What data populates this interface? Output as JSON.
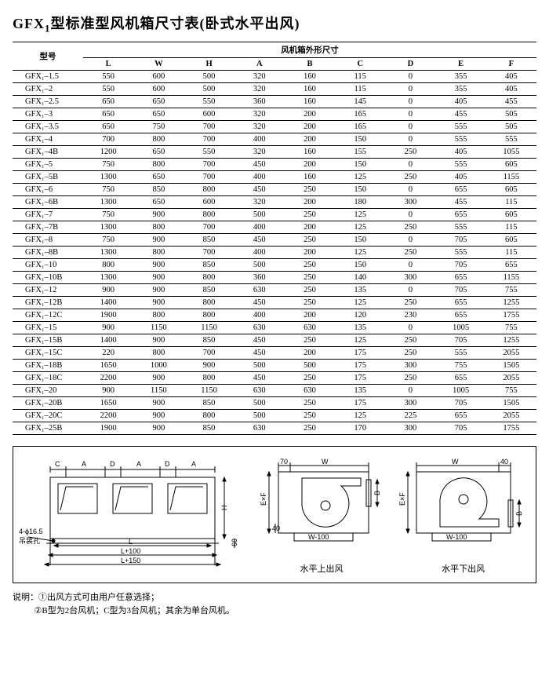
{
  "title_prefix": "GFX",
  "title_sub": "1",
  "title_rest": "型标准型风机箱尺寸表(卧式水平出风)",
  "header": {
    "model": "型号",
    "group": "风机箱外形尺寸",
    "cols": [
      "L",
      "W",
      "H",
      "A",
      "B",
      "C",
      "D",
      "E",
      "F"
    ]
  },
  "rows": [
    {
      "m": "GFX₁–1.5",
      "v": [
        "550",
        "600",
        "500",
        "320",
        "160",
        "115",
        "0",
        "355",
        "405"
      ]
    },
    {
      "m": "GFX₁–2",
      "v": [
        "550",
        "600",
        "500",
        "320",
        "160",
        "115",
        "0",
        "355",
        "405"
      ]
    },
    {
      "m": "GFX₁–2.5",
      "v": [
        "650",
        "650",
        "550",
        "360",
        "160",
        "145",
        "0",
        "405",
        "455"
      ]
    },
    {
      "m": "GFX₁–3",
      "v": [
        "650",
        "650",
        "600",
        "320",
        "200",
        "165",
        "0",
        "455",
        "505"
      ]
    },
    {
      "m": "GFX₁–3.5",
      "v": [
        "650",
        "750",
        "700",
        "320",
        "200",
        "165",
        "0",
        "555",
        "505"
      ]
    },
    {
      "m": "GFX₁–4",
      "v": [
        "700",
        "800",
        "700",
        "400",
        "200",
        "150",
        "0",
        "555",
        "555"
      ]
    },
    {
      "m": "GFX₁–4B",
      "v": [
        "1200",
        "650",
        "550",
        "320",
        "160",
        "155",
        "250",
        "405",
        "1055"
      ]
    },
    {
      "m": "GFX₁–5",
      "v": [
        "750",
        "800",
        "700",
        "450",
        "200",
        "150",
        "0",
        "555",
        "605"
      ]
    },
    {
      "m": "GFX₁–5B",
      "v": [
        "1300",
        "650",
        "700",
        "400",
        "160",
        "125",
        "250",
        "405",
        "1155"
      ]
    },
    {
      "m": "GFX₁–6",
      "v": [
        "750",
        "850",
        "800",
        "450",
        "250",
        "150",
        "0",
        "655",
        "605"
      ]
    },
    {
      "m": "GFX₁–6B",
      "v": [
        "1300",
        "650",
        "600",
        "320",
        "200",
        "180",
        "300",
        "455",
        "115"
      ]
    },
    {
      "m": "GFX₁–7",
      "v": [
        "750",
        "900",
        "800",
        "500",
        "250",
        "125",
        "0",
        "655",
        "605"
      ]
    },
    {
      "m": "GFX₁–7B",
      "v": [
        "1300",
        "800",
        "700",
        "400",
        "200",
        "125",
        "250",
        "555",
        "115"
      ]
    },
    {
      "m": "GFX₁–8",
      "v": [
        "750",
        "900",
        "850",
        "450",
        "250",
        "150",
        "0",
        "705",
        "605"
      ]
    },
    {
      "m": "GFX₁–8B",
      "v": [
        "1300",
        "800",
        "700",
        "400",
        "200",
        "125",
        "250",
        "555",
        "115"
      ]
    },
    {
      "m": "GFX₁–10",
      "v": [
        "800",
        "900",
        "850",
        "500",
        "250",
        "150",
        "0",
        "705",
        "655"
      ]
    },
    {
      "m": "GFX₁–10B",
      "v": [
        "1300",
        "900",
        "800",
        "360",
        "250",
        "140",
        "300",
        "655",
        "1155"
      ]
    },
    {
      "m": "GFX₁–12",
      "v": [
        "900",
        "900",
        "850",
        "630",
        "250",
        "135",
        "0",
        "705",
        "755"
      ]
    },
    {
      "m": "GFX₁–12B",
      "v": [
        "1400",
        "900",
        "800",
        "450",
        "250",
        "125",
        "250",
        "655",
        "1255"
      ]
    },
    {
      "m": "GFX₁–12C",
      "v": [
        "1900",
        "800",
        "800",
        "400",
        "200",
        "120",
        "230",
        "655",
        "1755"
      ]
    },
    {
      "m": "GFX₁–15",
      "v": [
        "900",
        "1150",
        "1150",
        "630",
        "630",
        "135",
        "0",
        "1005",
        "755"
      ]
    },
    {
      "m": "GFX₁–15B",
      "v": [
        "1400",
        "900",
        "850",
        "450",
        "250",
        "125",
        "250",
        "705",
        "1255"
      ]
    },
    {
      "m": "GFX₁–15C",
      "v": [
        "220",
        "800",
        "700",
        "450",
        "200",
        "175",
        "250",
        "555",
        "2055"
      ]
    },
    {
      "m": "GFX₁–18B",
      "v": [
        "1650",
        "1000",
        "900",
        "500",
        "500",
        "175",
        "300",
        "755",
        "1505"
      ]
    },
    {
      "m": "GFX₁–18C",
      "v": [
        "2200",
        "900",
        "800",
        "450",
        "250",
        "175",
        "250",
        "655",
        "2055"
      ]
    },
    {
      "m": "GFX₁–20",
      "v": [
        "900",
        "1150",
        "1150",
        "630",
        "630",
        "135",
        "0",
        "1005",
        "755"
      ]
    },
    {
      "m": "GFX₁–20B",
      "v": [
        "1650",
        "900",
        "850",
        "500",
        "250",
        "175",
        "300",
        "705",
        "1505"
      ]
    },
    {
      "m": "GFX₁–20C",
      "v": [
        "2200",
        "900",
        "800",
        "500",
        "250",
        "125",
        "225",
        "655",
        "2055"
      ]
    },
    {
      "m": "GFX₁–25B",
      "v": [
        "1900",
        "900",
        "850",
        "630",
        "250",
        "170",
        "300",
        "705",
        "1755"
      ]
    }
  ],
  "diagram": {
    "left_labels": [
      "C",
      "A",
      "D",
      "A",
      "D",
      "A"
    ],
    "anchor_text": "4-ϕ16.5",
    "anchor_sub": "吊装孔",
    "l_label": "L",
    "l100": "L+100",
    "l150": "L+150",
    "h_label": "H",
    "sixty": "60",
    "w_label": "W",
    "seventy": "70",
    "forty": "40",
    "exf": "E×F",
    "b_label": "B",
    "w100": "W-100",
    "cap1": "水平上出风",
    "cap2": "水平下出风"
  },
  "notes": {
    "lead": "说明：",
    "n1": "①出风方式可由用户任意选择；",
    "n2": "②B型为2台风机；C型为3台风机；其余为单台风机。"
  }
}
